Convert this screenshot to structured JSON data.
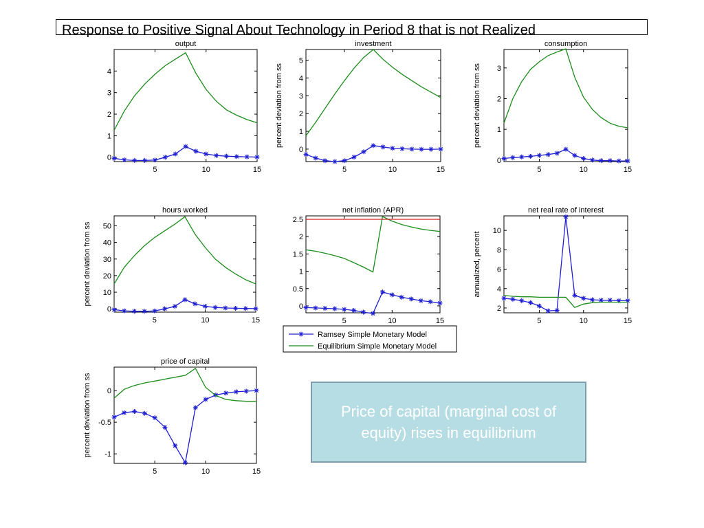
{
  "page_title": "Response to Positive Signal About Technology in Period 8 that is not Realized",
  "note": "Price of capital (marginal cost of equity) rises in equilibrium",
  "legend": {
    "entries": [
      "Ramsey Simple Monetary Model",
      "Equilibrium Simple Monetary Model"
    ]
  },
  "colors": {
    "ramsey": "#1f1fd2",
    "equilibrium": "#1a8c1a",
    "reference": "#d62020"
  },
  "chart_data": [
    {
      "type": "line",
      "title": "output",
      "ylabel": "",
      "xlim": [
        1,
        15
      ],
      "ylim": [
        -0.2,
        5.0
      ],
      "xticks": [
        5,
        10,
        15
      ],
      "xticklabels": [
        "5",
        "10",
        "15"
      ],
      "yticks": [
        0,
        1,
        2,
        3,
        4
      ],
      "yticklabels": [
        "0",
        "1",
        "2",
        "3",
        "4"
      ],
      "x": [
        1,
        2,
        3,
        4,
        5,
        6,
        7,
        8,
        9,
        10,
        11,
        12,
        13,
        14,
        15
      ],
      "series": [
        {
          "name": "Ramsey Simple Monetary Model",
          "marker": "star",
          "values": [
            -0.05,
            -0.12,
            -0.15,
            -0.15,
            -0.13,
            0.0,
            0.15,
            0.5,
            0.28,
            0.15,
            0.08,
            0.05,
            0.03,
            0.02,
            0.01
          ]
        },
        {
          "name": "Equilibrium Simple Monetary Model",
          "marker": "none",
          "values": [
            1.25,
            2.15,
            2.85,
            3.4,
            3.85,
            4.25,
            4.55,
            4.85,
            3.9,
            3.15,
            2.6,
            2.2,
            1.95,
            1.75,
            1.6
          ]
        }
      ]
    },
    {
      "type": "line",
      "title": "investment",
      "ylabel": "percent deviation from ss",
      "xlim": [
        1,
        15
      ],
      "ylim": [
        -0.7,
        5.6
      ],
      "xticks": [
        5,
        10,
        15
      ],
      "xticklabels": [
        "5",
        "10",
        "15"
      ],
      "yticks": [
        0,
        1,
        2,
        3,
        4,
        5
      ],
      "yticklabels": [
        "0",
        "1",
        "2",
        "3",
        "4",
        "5"
      ],
      "x": [
        1,
        2,
        3,
        4,
        5,
        6,
        7,
        8,
        9,
        10,
        11,
        12,
        13,
        14,
        15
      ],
      "series": [
        {
          "name": "Ramsey Simple Monetary Model",
          "marker": "star",
          "values": [
            -0.3,
            -0.5,
            -0.65,
            -0.7,
            -0.65,
            -0.45,
            -0.15,
            0.2,
            0.12,
            0.05,
            0.02,
            0.0,
            -0.01,
            -0.01,
            0.0
          ]
        },
        {
          "name": "Equilibrium Simple Monetary Model",
          "marker": "none",
          "values": [
            0.75,
            1.5,
            2.3,
            3.1,
            3.85,
            4.55,
            5.15,
            5.6,
            5.05,
            4.6,
            4.2,
            3.85,
            3.5,
            3.2,
            2.9
          ]
        }
      ]
    },
    {
      "type": "line",
      "title": "consumption",
      "ylabel": "percent deviation from ss",
      "xlim": [
        1,
        15
      ],
      "ylim": [
        -0.05,
        3.6
      ],
      "xticks": [
        5,
        10,
        15
      ],
      "xticklabels": [
        "5",
        "10",
        "15"
      ],
      "yticks": [
        0,
        1,
        2,
        3
      ],
      "yticklabels": [
        "0",
        "1",
        "2",
        "3"
      ],
      "x": [
        1,
        2,
        3,
        4,
        5,
        6,
        7,
        8,
        9,
        10,
        11,
        12,
        13,
        14,
        15
      ],
      "series": [
        {
          "name": "Ramsey Simple Monetary Model",
          "marker": "star",
          "values": [
            0.05,
            0.08,
            0.1,
            0.12,
            0.15,
            0.18,
            0.22,
            0.35,
            0.15,
            0.05,
            0.0,
            -0.02,
            -0.02,
            -0.03,
            -0.03
          ]
        },
        {
          "name": "Equilibrium Simple Monetary Model",
          "marker": "none",
          "values": [
            1.2,
            2.0,
            2.55,
            2.95,
            3.2,
            3.4,
            3.52,
            3.62,
            2.7,
            2.05,
            1.65,
            1.38,
            1.2,
            1.1,
            1.05
          ]
        }
      ]
    },
    {
      "type": "line",
      "title": "hours worked",
      "ylabel": "percent deviation from ss",
      "xlim": [
        1,
        15
      ],
      "ylim": [
        -2,
        56
      ],
      "xticks": [
        5,
        10,
        15
      ],
      "xticklabels": [
        "5",
        "10",
        "15"
      ],
      "yticks": [
        0,
        10,
        20,
        30,
        40,
        50
      ],
      "yticklabels": [
        "0",
        "10",
        "20",
        "30",
        "40",
        "50"
      ],
      "x": [
        1,
        2,
        3,
        4,
        5,
        6,
        7,
        8,
        9,
        10,
        11,
        12,
        13,
        14,
        15
      ],
      "series": [
        {
          "name": "Ramsey Simple Monetary Model",
          "marker": "star",
          "values": [
            -0.5,
            -1.2,
            -1.5,
            -1.5,
            -1.3,
            0.0,
            1.5,
            5.5,
            3.0,
            1.5,
            0.8,
            0.5,
            0.3,
            0.2,
            0.1
          ]
        },
        {
          "name": "Equilibrium Simple Monetary Model",
          "marker": "none",
          "values": [
            15,
            25,
            32,
            38,
            43,
            47,
            51,
            55.5,
            45,
            37,
            30,
            25,
            21,
            17.5,
            15
          ]
        }
      ]
    },
    {
      "type": "line",
      "title": "net inflation (APR)",
      "ylabel": "",
      "xlim": [
        1,
        15
      ],
      "ylim": [
        -0.2,
        2.6
      ],
      "xticks": [
        5,
        10,
        15
      ],
      "xticklabels": [
        "5",
        "10",
        "15"
      ],
      "yticks": [
        0,
        0.5,
        1,
        1.5,
        2,
        2.5
      ],
      "yticklabels": [
        "0",
        "0.5",
        "1",
        "1.5",
        "2",
        "2.5"
      ],
      "x": [
        1,
        2,
        3,
        4,
        5,
        6,
        7,
        8,
        9,
        10,
        11,
        12,
        13,
        14,
        15
      ],
      "series": [
        {
          "name": "Ramsey Simple Monetary Model",
          "marker": "star",
          "values": [
            -0.05,
            -0.06,
            -0.07,
            -0.08,
            -0.1,
            -0.13,
            -0.18,
            -0.22,
            0.4,
            0.32,
            0.25,
            0.2,
            0.15,
            0.12,
            0.08
          ]
        },
        {
          "name": "Equilibrium Simple Monetary Model",
          "marker": "none",
          "values": [
            1.62,
            1.58,
            1.52,
            1.45,
            1.37,
            1.25,
            1.12,
            0.98,
            2.58,
            2.45,
            2.35,
            2.28,
            2.22,
            2.18,
            2.15
          ]
        },
        {
          "name": "",
          "marker": "none",
          "role": "reference",
          "values": [
            2.5,
            2.5,
            2.5,
            2.5,
            2.5,
            2.5,
            2.5,
            2.5,
            2.5,
            2.5,
            2.5,
            2.5,
            2.5,
            2.5,
            2.5
          ]
        }
      ]
    },
    {
      "type": "line",
      "title": "net real rate of interest",
      "ylabel": "annualized, percent",
      "xlim": [
        1,
        15
      ],
      "ylim": [
        1.5,
        11.5
      ],
      "xticks": [
        5,
        10,
        15
      ],
      "xticklabels": [
        "5",
        "10",
        "15"
      ],
      "yticks": [
        2,
        4,
        6,
        8,
        10
      ],
      "yticklabels": [
        "2",
        "4",
        "6",
        "8",
        "10"
      ],
      "x": [
        1,
        2,
        3,
        4,
        5,
        6,
        7,
        8,
        9,
        10,
        11,
        12,
        13,
        14,
        15
      ],
      "series": [
        {
          "name": "Ramsey Simple Monetary Model",
          "marker": "star",
          "values": [
            3.0,
            2.9,
            2.75,
            2.55,
            2.2,
            1.7,
            1.75,
            11.4,
            3.3,
            3.0,
            2.85,
            2.8,
            2.8,
            2.75,
            2.75
          ]
        },
        {
          "name": "Equilibrium Simple Monetary Model",
          "marker": "none",
          "values": [
            3.3,
            3.2,
            3.15,
            3.15,
            3.1,
            3.1,
            3.1,
            3.1,
            2.05,
            2.4,
            2.55,
            2.6,
            2.6,
            2.6,
            2.6
          ]
        }
      ]
    },
    {
      "type": "line",
      "title": "price of capital",
      "ylabel": "percent deviation from ss",
      "xlim": [
        1,
        15
      ],
      "ylim": [
        -1.15,
        0.37
      ],
      "xticks": [
        5,
        10,
        15
      ],
      "xticklabels": [
        "5",
        "10",
        "15"
      ],
      "yticks": [
        -1,
        -0.5,
        0
      ],
      "yticklabels": [
        "-1",
        "-0.5",
        "0"
      ],
      "x": [
        1,
        2,
        3,
        4,
        5,
        6,
        7,
        8,
        9,
        10,
        11,
        12,
        13,
        14,
        15
      ],
      "series": [
        {
          "name": "Ramsey Simple Monetary Model",
          "marker": "star",
          "values": [
            -0.42,
            -0.35,
            -0.33,
            -0.36,
            -0.43,
            -0.58,
            -0.87,
            -1.14,
            -0.27,
            -0.14,
            -0.07,
            -0.04,
            -0.02,
            -0.01,
            0.0
          ]
        },
        {
          "name": "Equilibrium Simple Monetary Model",
          "marker": "none",
          "values": [
            -0.12,
            0.02,
            0.08,
            0.12,
            0.15,
            0.18,
            0.21,
            0.24,
            0.35,
            0.05,
            -0.08,
            -0.14,
            -0.16,
            -0.17,
            -0.17
          ]
        }
      ]
    }
  ]
}
